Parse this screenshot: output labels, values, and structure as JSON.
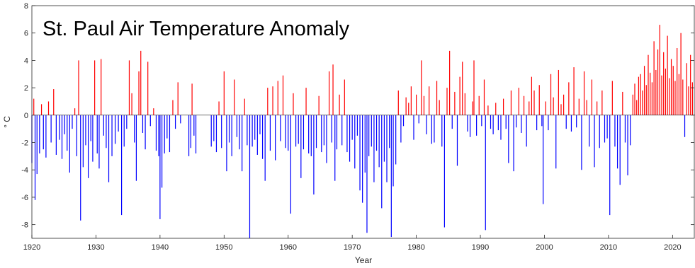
{
  "chart_data": {
    "type": "bar",
    "title": "St. Paul Air Temperature Anomaly",
    "xlabel": "Year",
    "ylabel": "° C",
    "xlim": [
      1920,
      2023.5
    ],
    "ylim": [
      -9,
      8
    ],
    "xticks": [
      1920,
      1930,
      1940,
      1950,
      1960,
      1970,
      1980,
      1990,
      2000,
      2010,
      2020
    ],
    "yticks": [
      -8,
      -6,
      -4,
      -2,
      0,
      2,
      4,
      6,
      8
    ],
    "colors": {
      "positive": "#ff0000",
      "negative": "#0000ff",
      "axis": "#262626"
    },
    "grid": false,
    "legend": "none",
    "series": [
      {
        "values": [
          [
            1920.0,
            -3.5
          ],
          [
            1920.3,
            1.2
          ],
          [
            1920.5,
            -6.2
          ],
          [
            1920.8,
            -4.3
          ],
          [
            1921.2,
            -2.8
          ],
          [
            1921.5,
            0.8
          ],
          [
            1921.8,
            -2.5
          ],
          [
            1922.2,
            -3.1
          ],
          [
            1922.6,
            1.0
          ],
          [
            1923.0,
            -2.0
          ],
          [
            1923.4,
            1.9
          ],
          [
            1923.8,
            -2.9
          ],
          [
            1924.3,
            -1.8
          ],
          [
            1924.7,
            -3.2
          ],
          [
            1925.1,
            -1.4
          ],
          [
            1925.5,
            -2.6
          ],
          [
            1925.9,
            -4.2
          ],
          [
            1926.3,
            -1.0
          ],
          [
            1926.7,
            0.5
          ],
          [
            1927.0,
            -3.0
          ],
          [
            1927.3,
            4.0
          ],
          [
            1927.6,
            -7.7
          ],
          [
            1928.0,
            -3.8
          ],
          [
            1928.4,
            -2.2
          ],
          [
            1928.8,
            -4.6
          ],
          [
            1929.2,
            -1.9
          ],
          [
            1929.5,
            -3.4
          ],
          [
            1929.8,
            4.0
          ],
          [
            1930.2,
            -2.8
          ],
          [
            1930.5,
            -3.9
          ],
          [
            1930.8,
            4.1
          ],
          [
            1931.2,
            -1.5
          ],
          [
            1931.6,
            -2.4
          ],
          [
            1932.0,
            -4.9
          ],
          [
            1932.5,
            -3.0
          ],
          [
            1933.0,
            -2.1
          ],
          [
            1933.5,
            -1.2
          ],
          [
            1934.0,
            -7.3
          ],
          [
            1934.4,
            -2.3
          ],
          [
            1934.8,
            -1.0
          ],
          [
            1935.2,
            4.0
          ],
          [
            1935.6,
            1.6
          ],
          [
            1936.0,
            -2.0
          ],
          [
            1936.3,
            -4.8
          ],
          [
            1936.7,
            3.2
          ],
          [
            1937.0,
            4.7
          ],
          [
            1937.3,
            -1.3
          ],
          [
            1937.7,
            -2.5
          ],
          [
            1938.1,
            3.9
          ],
          [
            1938.5,
            -0.8
          ],
          [
            1939.0,
            0.5
          ],
          [
            1939.4,
            -2.6
          ],
          [
            1939.8,
            -3.0
          ],
          [
            1940.0,
            -7.6
          ],
          [
            1940.3,
            -5.3
          ],
          [
            1940.7,
            -2.8
          ],
          [
            1941.1,
            -1.7
          ],
          [
            1941.5,
            -2.7
          ],
          [
            1942.0,
            1.1
          ],
          [
            1942.4,
            -1.0
          ],
          [
            1942.8,
            2.4
          ],
          [
            1943.2,
            -0.6
          ],
          [
            1944.5,
            -3.0
          ],
          [
            1944.8,
            -2.4
          ],
          [
            1945.0,
            2.3
          ],
          [
            1945.3,
            -1.5
          ],
          [
            1945.6,
            -2.8
          ],
          [
            1948.0,
            -2.3
          ],
          [
            1948.4,
            -1.9
          ],
          [
            1948.8,
            -2.7
          ],
          [
            1949.2,
            1.0
          ],
          [
            1949.6,
            -2.4
          ],
          [
            1950.0,
            3.2
          ],
          [
            1950.4,
            -4.1
          ],
          [
            1950.8,
            -2.0
          ],
          [
            1951.2,
            -3.0
          ],
          [
            1951.6,
            2.6
          ],
          [
            1952.0,
            -1.6
          ],
          [
            1952.4,
            -2.5
          ],
          [
            1952.8,
            -4.1
          ],
          [
            1953.2,
            1.2
          ],
          [
            1953.6,
            -2.2
          ],
          [
            1954.0,
            -9.0
          ],
          [
            1954.4,
            -2.3
          ],
          [
            1954.8,
            -1.8
          ],
          [
            1955.2,
            -2.9
          ],
          [
            1955.6,
            -1.4
          ],
          [
            1956.0,
            -3.2
          ],
          [
            1956.4,
            -4.8
          ],
          [
            1956.8,
            2.0
          ],
          [
            1957.2,
            -2.6
          ],
          [
            1957.6,
            2.1
          ],
          [
            1958.0,
            -3.3
          ],
          [
            1958.4,
            2.5
          ],
          [
            1958.8,
            -1.9
          ],
          [
            1959.2,
            2.9
          ],
          [
            1959.6,
            -2.4
          ],
          [
            1960.0,
            -2.6
          ],
          [
            1960.4,
            -7.2
          ],
          [
            1960.8,
            1.6
          ],
          [
            1961.2,
            -2.3
          ],
          [
            1961.6,
            -2.1
          ],
          [
            1962.0,
            -4.6
          ],
          [
            1962.4,
            -2.5
          ],
          [
            1962.8,
            2.0
          ],
          [
            1963.2,
            -2.8
          ],
          [
            1963.6,
            -3.0
          ],
          [
            1964.0,
            -5.8
          ],
          [
            1964.4,
            -2.4
          ],
          [
            1964.8,
            1.4
          ],
          [
            1965.2,
            -2.7
          ],
          [
            1965.6,
            -2.2
          ],
          [
            1966.0,
            -3.5
          ],
          [
            1966.4,
            3.2
          ],
          [
            1966.8,
            -2.0
          ],
          [
            1967.0,
            3.7
          ],
          [
            1967.3,
            -4.8
          ],
          [
            1967.6,
            -2.5
          ],
          [
            1968.0,
            1.5
          ],
          [
            1968.4,
            -2.2
          ],
          [
            1968.8,
            2.6
          ],
          [
            1969.2,
            -2.7
          ],
          [
            1969.6,
            -3.4
          ],
          [
            1970.0,
            -1.8
          ],
          [
            1970.4,
            -3.9
          ],
          [
            1970.8,
            -1.5
          ],
          [
            1971.2,
            -5.5
          ],
          [
            1971.6,
            -6.4
          ],
          [
            1972.0,
            -4.2
          ],
          [
            1972.3,
            -8.6
          ],
          [
            1972.6,
            -3.0
          ],
          [
            1973.0,
            -2.3
          ],
          [
            1973.4,
            -4.9
          ],
          [
            1973.8,
            -2.6
          ],
          [
            1974.2,
            -3.8
          ],
          [
            1974.6,
            -6.8
          ],
          [
            1975.0,
            -3.4
          ],
          [
            1975.4,
            -4.9
          ],
          [
            1975.8,
            -2.4
          ],
          [
            1976.1,
            -8.9
          ],
          [
            1976.4,
            -5.2
          ],
          [
            1976.8,
            -3.6
          ],
          [
            1977.2,
            1.8
          ],
          [
            1977.6,
            -2.0
          ],
          [
            1978.0,
            -0.8
          ],
          [
            1978.4,
            1.3
          ],
          [
            1978.8,
            0.9
          ],
          [
            1979.2,
            2.1
          ],
          [
            1979.6,
            -1.8
          ],
          [
            1980.0,
            1.5
          ],
          [
            1980.4,
            -0.6
          ],
          [
            1980.8,
            4.0
          ],
          [
            1981.2,
            1.4
          ],
          [
            1981.6,
            -1.4
          ],
          [
            1982.0,
            2.1
          ],
          [
            1982.4,
            -2.1
          ],
          [
            1982.8,
            -2.0
          ],
          [
            1983.2,
            2.5
          ],
          [
            1983.6,
            1.1
          ],
          [
            1984.0,
            -2.3
          ],
          [
            1984.4,
            -8.2
          ],
          [
            1984.8,
            2.0
          ],
          [
            1985.2,
            4.7
          ],
          [
            1985.6,
            -1.0
          ],
          [
            1986.0,
            1.7
          ],
          [
            1986.4,
            -3.7
          ],
          [
            1986.8,
            2.8
          ],
          [
            1987.2,
            3.9
          ],
          [
            1987.6,
            1.6
          ],
          [
            1988.0,
            -1.2
          ],
          [
            1988.4,
            -1.6
          ],
          [
            1988.8,
            1.0
          ],
          [
            1989.0,
            4.0
          ],
          [
            1989.4,
            -1.5
          ],
          [
            1989.8,
            1.4
          ],
          [
            1990.2,
            -0.8
          ],
          [
            1990.6,
            2.6
          ],
          [
            1990.8,
            -8.4
          ],
          [
            1991.2,
            0.7
          ],
          [
            1991.6,
            -1.0
          ],
          [
            1992.0,
            -1.4
          ],
          [
            1992.4,
            0.9
          ],
          [
            1992.8,
            -1.1
          ],
          [
            1993.2,
            -1.8
          ],
          [
            1993.6,
            1.2
          ],
          [
            1994.0,
            -1.0
          ],
          [
            1994.4,
            -3.5
          ],
          [
            1994.8,
            1.8
          ],
          [
            1995.2,
            -4.1
          ],
          [
            1995.6,
            -0.9
          ],
          [
            1996.0,
            2.0
          ],
          [
            1996.4,
            -1.3
          ],
          [
            1996.8,
            1.4
          ],
          [
            1997.2,
            -2.3
          ],
          [
            1997.6,
            1.0
          ],
          [
            1998.0,
            2.8
          ],
          [
            1998.4,
            1.8
          ],
          [
            1998.8,
            -1.1
          ],
          [
            1999.2,
            2.2
          ],
          [
            1999.6,
            -0.8
          ],
          [
            1999.8,
            -6.5
          ],
          [
            2000.2,
            1.0
          ],
          [
            2000.6,
            -1.1
          ],
          [
            2001.0,
            3.0
          ],
          [
            2001.4,
            1.3
          ],
          [
            2001.8,
            -3.9
          ],
          [
            2002.2,
            3.3
          ],
          [
            2002.6,
            0.8
          ],
          [
            2003.0,
            1.5
          ],
          [
            2003.4,
            -1.0
          ],
          [
            2003.8,
            2.4
          ],
          [
            2004.2,
            -1.2
          ],
          [
            2004.6,
            3.5
          ],
          [
            2005.0,
            -0.9
          ],
          [
            2005.4,
            1.2
          ],
          [
            2005.8,
            -4.0
          ],
          [
            2006.2,
            3.2
          ],
          [
            2006.6,
            1.1
          ],
          [
            2007.0,
            -2.3
          ],
          [
            2007.4,
            2.6
          ],
          [
            2007.8,
            -3.8
          ],
          [
            2008.2,
            1.0
          ],
          [
            2008.6,
            -2.4
          ],
          [
            2009.0,
            1.8
          ],
          [
            2009.4,
            -2.0
          ],
          [
            2009.8,
            -1.7
          ],
          [
            2010.2,
            -7.3
          ],
          [
            2010.6,
            2.5
          ],
          [
            2011.0,
            -2.3
          ],
          [
            2011.4,
            -3.9
          ],
          [
            2011.8,
            -5.1
          ],
          [
            2012.2,
            1.7
          ],
          [
            2012.6,
            -2.0
          ],
          [
            2013.0,
            -4.4
          ],
          [
            2013.4,
            -2.2
          ],
          [
            2013.8,
            1.5
          ],
          [
            2014.1,
            2.3
          ],
          [
            2014.4,
            1.1
          ],
          [
            2014.7,
            2.8
          ],
          [
            2015.0,
            3.0
          ],
          [
            2015.3,
            1.8
          ],
          [
            2015.6,
            3.6
          ],
          [
            2015.9,
            2.2
          ],
          [
            2016.2,
            4.4
          ],
          [
            2016.5,
            3.1
          ],
          [
            2016.8,
            2.4
          ],
          [
            2017.1,
            5.4
          ],
          [
            2017.4,
            3.3
          ],
          [
            2017.7,
            4.8
          ],
          [
            2018.0,
            6.6
          ],
          [
            2018.3,
            2.9
          ],
          [
            2018.6,
            4.6
          ],
          [
            2018.9,
            3.4
          ],
          [
            2019.2,
            5.8
          ],
          [
            2019.5,
            2.7
          ],
          [
            2019.8,
            4.1
          ],
          [
            2020.1,
            3.6
          ],
          [
            2020.4,
            2.5
          ],
          [
            2020.7,
            4.9
          ],
          [
            2021.0,
            3.0
          ],
          [
            2021.3,
            6.0
          ],
          [
            2021.6,
            2.6
          ],
          [
            2021.9,
            -1.6
          ],
          [
            2022.2,
            3.8
          ],
          [
            2022.5,
            2.1
          ],
          [
            2022.8,
            4.4
          ],
          [
            2023.1,
            2.4
          ]
        ]
      }
    ]
  }
}
